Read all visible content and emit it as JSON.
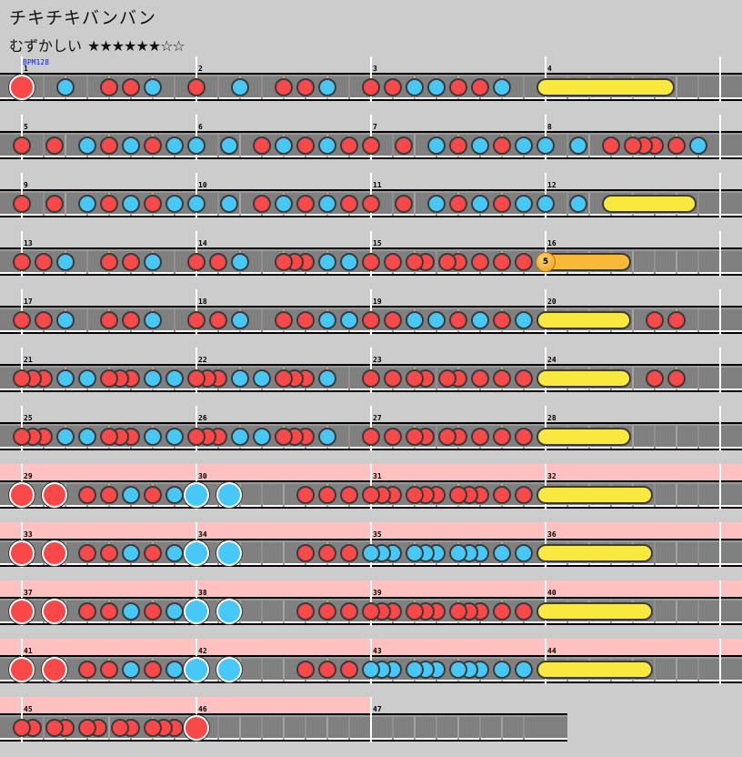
{
  "title": "チキチキバンバン",
  "difficulty": {
    "label": "むずかしい",
    "stars": "★★★★★★☆☆"
  },
  "bpm_label": "BPM128",
  "colors": {
    "don": "#f84848",
    "ka": "#48c8f8",
    "roll": "#f8e840",
    "balloon": "#f8b838",
    "gogo": "#ffc0c0",
    "lane": "#808080",
    "background": "#cccccc"
  },
  "units": "positions in 16th notes from row start; 16 per measure",
  "rows": [
    {
      "measures": [
        "1",
        "2",
        "3",
        "4"
      ],
      "length": 64,
      "gogo": 0,
      "notes": [
        [
          0,
          "D"
        ],
        [
          4,
          "k"
        ],
        [
          8,
          "d"
        ],
        [
          10,
          "d"
        ],
        [
          12,
          "k"
        ],
        [
          16,
          "d"
        ],
        [
          20,
          "k"
        ],
        [
          24,
          "d"
        ],
        [
          26,
          "d"
        ],
        [
          28,
          "k"
        ],
        [
          32,
          "d"
        ],
        [
          34,
          "d"
        ],
        [
          36,
          "k"
        ],
        [
          38,
          "k"
        ],
        [
          40,
          "d"
        ],
        [
          42,
          "d"
        ],
        [
          44,
          "k"
        ]
      ],
      "rolls": [
        {
          "start": 48,
          "end": 59,
          "kind": "roll"
        }
      ]
    },
    {
      "measures": [
        "5",
        "6",
        "7",
        "8"
      ],
      "length": 64,
      "gogo": 0,
      "notes": [
        [
          0,
          "d"
        ],
        [
          3,
          "d"
        ],
        [
          6,
          "k"
        ],
        [
          8,
          "d"
        ],
        [
          10,
          "k"
        ],
        [
          12,
          "d"
        ],
        [
          14,
          "k"
        ],
        [
          16,
          "k"
        ],
        [
          19,
          "k"
        ],
        [
          22,
          "d"
        ],
        [
          24,
          "k"
        ],
        [
          26,
          "d"
        ],
        [
          28,
          "k"
        ],
        [
          30,
          "d"
        ],
        [
          32,
          "d"
        ],
        [
          35,
          "d"
        ],
        [
          38,
          "k"
        ],
        [
          40,
          "d"
        ],
        [
          42,
          "k"
        ],
        [
          44,
          "d"
        ],
        [
          46,
          "k"
        ],
        [
          48,
          "k"
        ],
        [
          51,
          "k"
        ],
        [
          54,
          "d"
        ],
        [
          56,
          "d"
        ],
        [
          57,
          "d"
        ],
        [
          58,
          "d"
        ],
        [
          60,
          "d"
        ],
        [
          62,
          "k"
        ]
      ],
      "rolls": []
    },
    {
      "measures": [
        "9",
        "10",
        "11",
        "12"
      ],
      "length": 64,
      "gogo": 0,
      "notes": [
        [
          0,
          "d"
        ],
        [
          3,
          "d"
        ],
        [
          6,
          "k"
        ],
        [
          8,
          "d"
        ],
        [
          10,
          "k"
        ],
        [
          12,
          "d"
        ],
        [
          14,
          "k"
        ],
        [
          16,
          "k"
        ],
        [
          19,
          "k"
        ],
        [
          22,
          "d"
        ],
        [
          24,
          "k"
        ],
        [
          26,
          "d"
        ],
        [
          28,
          "k"
        ],
        [
          30,
          "d"
        ],
        [
          32,
          "d"
        ],
        [
          35,
          "d"
        ],
        [
          38,
          "k"
        ],
        [
          40,
          "d"
        ],
        [
          42,
          "k"
        ],
        [
          44,
          "d"
        ],
        [
          46,
          "k"
        ],
        [
          48,
          "k"
        ],
        [
          51,
          "k"
        ]
      ],
      "rolls": [
        {
          "start": 54,
          "end": 61,
          "kind": "roll"
        }
      ]
    },
    {
      "measures": [
        "13",
        "14",
        "15",
        "16"
      ],
      "length": 64,
      "gogo": 0,
      "notes": [
        [
          0,
          "d"
        ],
        [
          2,
          "d"
        ],
        [
          4,
          "k"
        ],
        [
          8,
          "d"
        ],
        [
          10,
          "d"
        ],
        [
          12,
          "k"
        ],
        [
          16,
          "d"
        ],
        [
          18,
          "d"
        ],
        [
          20,
          "k"
        ],
        [
          24,
          "d"
        ],
        [
          25,
          "d"
        ],
        [
          26,
          "d"
        ],
        [
          28,
          "k"
        ],
        [
          30,
          "k"
        ],
        [
          32,
          "d"
        ],
        [
          34,
          "d"
        ],
        [
          36,
          "d"
        ],
        [
          37,
          "d"
        ],
        [
          39,
          "d"
        ],
        [
          40,
          "d"
        ],
        [
          42,
          "d"
        ],
        [
          44,
          "d"
        ],
        [
          46,
          "d"
        ]
      ],
      "rolls": [
        {
          "start": 48,
          "end": 55,
          "kind": "balloon",
          "count": "5"
        }
      ]
    },
    {
      "measures": [
        "17",
        "18",
        "19",
        "20"
      ],
      "length": 64,
      "gogo": 0,
      "notes": [
        [
          0,
          "d"
        ],
        [
          2,
          "d"
        ],
        [
          4,
          "k"
        ],
        [
          8,
          "d"
        ],
        [
          10,
          "d"
        ],
        [
          12,
          "k"
        ],
        [
          16,
          "d"
        ],
        [
          18,
          "d"
        ],
        [
          20,
          "k"
        ],
        [
          24,
          "d"
        ],
        [
          26,
          "d"
        ],
        [
          28,
          "k"
        ],
        [
          30,
          "k"
        ],
        [
          32,
          "d"
        ],
        [
          34,
          "d"
        ],
        [
          36,
          "k"
        ],
        [
          38,
          "k"
        ],
        [
          40,
          "d"
        ],
        [
          42,
          "k"
        ],
        [
          44,
          "d"
        ],
        [
          46,
          "k"
        ],
        [
          58,
          "d"
        ],
        [
          60,
          "d"
        ]
      ],
      "rolls": [
        {
          "start": 48,
          "end": 55,
          "kind": "roll"
        }
      ]
    },
    {
      "measures": [
        "21",
        "22",
        "23",
        "24"
      ],
      "length": 64,
      "gogo": 0,
      "notes": [
        [
          0,
          "d"
        ],
        [
          1,
          "d"
        ],
        [
          2,
          "d"
        ],
        [
          4,
          "k"
        ],
        [
          6,
          "k"
        ],
        [
          8,
          "d"
        ],
        [
          9,
          "d"
        ],
        [
          10,
          "d"
        ],
        [
          12,
          "k"
        ],
        [
          14,
          "k"
        ],
        [
          16,
          "d"
        ],
        [
          17,
          "d"
        ],
        [
          18,
          "d"
        ],
        [
          20,
          "k"
        ],
        [
          22,
          "k"
        ],
        [
          24,
          "d"
        ],
        [
          25,
          "d"
        ],
        [
          26,
          "d"
        ],
        [
          28,
          "k"
        ],
        [
          32,
          "d"
        ],
        [
          34,
          "d"
        ],
        [
          36,
          "d"
        ],
        [
          37,
          "d"
        ],
        [
          39,
          "d"
        ],
        [
          40,
          "d"
        ],
        [
          42,
          "d"
        ],
        [
          44,
          "d"
        ],
        [
          46,
          "d"
        ],
        [
          58,
          "d"
        ],
        [
          60,
          "d"
        ]
      ],
      "rolls": [
        {
          "start": 48,
          "end": 55,
          "kind": "roll"
        }
      ]
    },
    {
      "measures": [
        "25",
        "26",
        "27",
        "28"
      ],
      "length": 64,
      "gogo": 0,
      "notes": [
        [
          0,
          "d"
        ],
        [
          1,
          "d"
        ],
        [
          2,
          "d"
        ],
        [
          4,
          "k"
        ],
        [
          6,
          "k"
        ],
        [
          8,
          "d"
        ],
        [
          9,
          "d"
        ],
        [
          10,
          "d"
        ],
        [
          12,
          "k"
        ],
        [
          14,
          "k"
        ],
        [
          16,
          "d"
        ],
        [
          17,
          "d"
        ],
        [
          18,
          "d"
        ],
        [
          20,
          "k"
        ],
        [
          22,
          "k"
        ],
        [
          24,
          "d"
        ],
        [
          25,
          "d"
        ],
        [
          26,
          "d"
        ],
        [
          28,
          "k"
        ],
        [
          32,
          "d"
        ],
        [
          34,
          "d"
        ],
        [
          36,
          "d"
        ],
        [
          37,
          "d"
        ],
        [
          39,
          "d"
        ],
        [
          40,
          "d"
        ],
        [
          42,
          "d"
        ],
        [
          44,
          "d"
        ],
        [
          46,
          "d"
        ]
      ],
      "rolls": [
        {
          "start": 48,
          "end": 55,
          "kind": "roll"
        }
      ]
    },
    {
      "measures": [
        "29",
        "30",
        "31",
        "32"
      ],
      "length": 64,
      "gogo": 68,
      "notes": [
        [
          0,
          "D"
        ],
        [
          3,
          "D"
        ],
        [
          6,
          "d"
        ],
        [
          8,
          "d"
        ],
        [
          10,
          "k"
        ],
        [
          12,
          "d"
        ],
        [
          14,
          "k"
        ],
        [
          16,
          "K"
        ],
        [
          19,
          "K"
        ],
        [
          26,
          "d"
        ],
        [
          28,
          "d"
        ],
        [
          30,
          "d"
        ],
        [
          32,
          "d"
        ],
        [
          33,
          "d"
        ],
        [
          34,
          "d"
        ],
        [
          36,
          "d"
        ],
        [
          37,
          "d"
        ],
        [
          38,
          "d"
        ],
        [
          40,
          "d"
        ],
        [
          41,
          "d"
        ],
        [
          42,
          "d"
        ],
        [
          44,
          "d"
        ],
        [
          46,
          "d"
        ]
      ],
      "rolls": [
        {
          "start": 48,
          "end": 57,
          "kind": "roll"
        }
      ]
    },
    {
      "measures": [
        "33",
        "34",
        "35",
        "36"
      ],
      "length": 64,
      "gogo": 68,
      "notes": [
        [
          0,
          "D"
        ],
        [
          3,
          "D"
        ],
        [
          6,
          "d"
        ],
        [
          8,
          "d"
        ],
        [
          10,
          "k"
        ],
        [
          12,
          "d"
        ],
        [
          14,
          "k"
        ],
        [
          16,
          "K"
        ],
        [
          19,
          "K"
        ],
        [
          26,
          "d"
        ],
        [
          28,
          "d"
        ],
        [
          30,
          "d"
        ],
        [
          32,
          "k"
        ],
        [
          33,
          "k"
        ],
        [
          34,
          "k"
        ],
        [
          36,
          "k"
        ],
        [
          37,
          "k"
        ],
        [
          38,
          "k"
        ],
        [
          40,
          "k"
        ],
        [
          41,
          "k"
        ],
        [
          42,
          "k"
        ],
        [
          44,
          "k"
        ],
        [
          46,
          "k"
        ]
      ],
      "rolls": [
        {
          "start": 48,
          "end": 57,
          "kind": "roll"
        }
      ]
    },
    {
      "measures": [
        "37",
        "38",
        "39",
        "40"
      ],
      "length": 64,
      "gogo": 68,
      "notes": [
        [
          0,
          "D"
        ],
        [
          3,
          "D"
        ],
        [
          6,
          "d"
        ],
        [
          8,
          "d"
        ],
        [
          10,
          "k"
        ],
        [
          12,
          "d"
        ],
        [
          14,
          "k"
        ],
        [
          16,
          "K"
        ],
        [
          19,
          "K"
        ],
        [
          26,
          "d"
        ],
        [
          28,
          "d"
        ],
        [
          30,
          "d"
        ],
        [
          32,
          "d"
        ],
        [
          33,
          "d"
        ],
        [
          34,
          "d"
        ],
        [
          36,
          "d"
        ],
        [
          37,
          "d"
        ],
        [
          38,
          "d"
        ],
        [
          40,
          "d"
        ],
        [
          41,
          "d"
        ],
        [
          42,
          "d"
        ],
        [
          44,
          "d"
        ],
        [
          46,
          "d"
        ]
      ],
      "rolls": [
        {
          "start": 48,
          "end": 57,
          "kind": "roll"
        }
      ]
    },
    {
      "measures": [
        "41",
        "42",
        "43",
        "44"
      ],
      "length": 64,
      "gogo": 68,
      "notes": [
        [
          0,
          "D"
        ],
        [
          3,
          "D"
        ],
        [
          6,
          "d"
        ],
        [
          8,
          "d"
        ],
        [
          10,
          "k"
        ],
        [
          12,
          "d"
        ],
        [
          14,
          "k"
        ],
        [
          16,
          "K"
        ],
        [
          19,
          "K"
        ],
        [
          26,
          "d"
        ],
        [
          28,
          "d"
        ],
        [
          30,
          "d"
        ],
        [
          32,
          "k"
        ],
        [
          33,
          "k"
        ],
        [
          34,
          "k"
        ],
        [
          36,
          "k"
        ],
        [
          37,
          "k"
        ],
        [
          38,
          "k"
        ],
        [
          40,
          "k"
        ],
        [
          41,
          "k"
        ],
        [
          42,
          "k"
        ],
        [
          44,
          "k"
        ],
        [
          46,
          "k"
        ]
      ],
      "rolls": [
        {
          "start": 48,
          "end": 57,
          "kind": "roll"
        }
      ]
    },
    {
      "measures": [
        "45",
        "46",
        "47"
      ],
      "length": 50,
      "gogo": 32,
      "notes": [
        [
          0,
          "d"
        ],
        [
          1,
          "d"
        ],
        [
          3,
          "d"
        ],
        [
          4,
          "d"
        ],
        [
          6,
          "d"
        ],
        [
          7,
          "d"
        ],
        [
          9,
          "d"
        ],
        [
          10,
          "d"
        ],
        [
          12,
          "d"
        ],
        [
          13,
          "d"
        ],
        [
          14,
          "d"
        ],
        [
          16,
          "D"
        ]
      ],
      "rolls": []
    }
  ]
}
